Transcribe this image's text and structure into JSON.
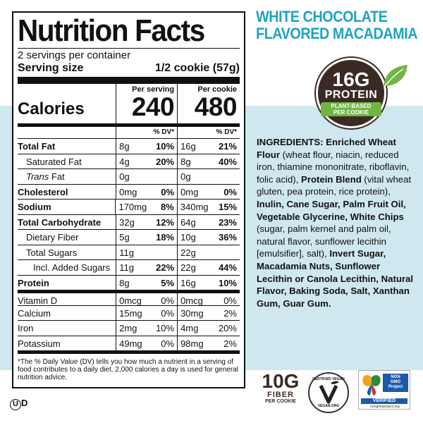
{
  "colors": {
    "accent_blue": "#1fa3c2",
    "brown": "#3b2a24",
    "green": "#6fb544",
    "bg_light_blue": "#cfe8ef"
  },
  "nutrition": {
    "title": "Nutrition Facts",
    "servings": "2 servings per container",
    "serving_size_label": "Serving size",
    "serving_size_value": "1/2 cookie (57g)",
    "calories_label": "Calories",
    "per_serving_label": "Per serving",
    "per_cookie_label": "Per cookie",
    "calories_serving": "240",
    "calories_cookie": "480",
    "dv_header": "% DV*",
    "rows": [
      {
        "name": "Total Fat",
        "amt": "8g",
        "dv": "10%",
        "amt2": "16g",
        "dv2": "21%"
      },
      {
        "name": "Saturated Fat",
        "amt": "4g",
        "dv": "20%",
        "amt2": "8g",
        "dv2": "40%"
      },
      {
        "name": "Trans",
        "name_suffix": " Fat",
        "amt": "0g",
        "dv": "",
        "amt2": "0g",
        "dv2": ""
      },
      {
        "name": "Cholesterol",
        "amt": "0mg",
        "dv": "0%",
        "amt2": "0mg",
        "dv2": "0%"
      },
      {
        "name": "Sodium",
        "amt": "170mg",
        "dv": "8%",
        "amt2": "340mg",
        "dv2": "15%"
      },
      {
        "name": "Total Carbohydrate",
        "amt": "32g",
        "dv": "12%",
        "amt2": "64g",
        "dv2": "23%"
      },
      {
        "name": "Dietary Fiber",
        "amt": "5g",
        "dv": "18%",
        "amt2": "10g",
        "dv2": "36%"
      },
      {
        "name": "Total Sugars",
        "amt": "11g",
        "dv": "",
        "amt2": "22g",
        "dv2": ""
      },
      {
        "name": "Incl. Added Sugars",
        "amt": "11g",
        "dv": "22%",
        "amt2": "22g",
        "dv2": "44%"
      },
      {
        "name": "Protein",
        "amt": "8g",
        "dv": "5%",
        "amt2": "16g",
        "dv2": "10%"
      },
      {
        "name": "Vitamin D",
        "amt": "0mcg",
        "dv": "0%",
        "amt2": "0mcg",
        "dv2": "0%"
      },
      {
        "name": "Calcium",
        "amt": "15mg",
        "dv": "0%",
        "amt2": "30mg",
        "dv2": "2%"
      },
      {
        "name": "Iron",
        "amt": "2mg",
        "dv": "10%",
        "amt2": "4mg",
        "dv2": "20%"
      },
      {
        "name": "Potassium",
        "amt": "49mg",
        "dv": "0%",
        "amt2": "98mg",
        "dv2": "2%"
      }
    ],
    "footnote": "*The % Daily Value (DV) tells you how much a nutrient in a serving of food contributes to a daily diet. 2,000 calories a day is used for general nutrition advice."
  },
  "product": {
    "title_line1": "WHITE CHOCOLATE",
    "title_line2": "FLAVORED MACADAMIA"
  },
  "protein_badge": {
    "amount": "16G",
    "label": "PROTEIN",
    "sub1": "PLANT-BASED",
    "sub2": "PER COOKIE"
  },
  "ingredients": {
    "parts": [
      {
        "t": "INGREDIENTS: Enriched Wheat Flour",
        "b": true
      },
      {
        "t": " (wheat flour, niacin, reduced iron, thiamine mononitrate, riboflavin, folic acid), ",
        "b": false
      },
      {
        "t": "Protein Blend",
        "b": true
      },
      {
        "t": " (vital wheat gluten, pea protein, rice protein), ",
        "b": false
      },
      {
        "t": "Inulin, Cane Sugar, Palm Fruit Oil, Vegetable Glycerine, White Chips",
        "b": true
      },
      {
        "t": " (sugar, palm kernel and palm oil, natural flavor, sunflower lecithin [emulsifier], salt), ",
        "b": false
      },
      {
        "t": "Invert Sugar, Macadamia Nuts, Sunflower Lecithin or Canola Lecithin, Natural Flavor, Baking Soda, Salt, Xanthan Gum, Guar Gum.",
        "b": true
      }
    ]
  },
  "fiber_badge": {
    "amount": "10G",
    "label": "FIBER",
    "sub": "PER COOKIE"
  },
  "vegan_badge": {
    "top": "CERTIFIED VEGAN",
    "bottom": "VEGAN.ORG"
  },
  "nongmo_badge": {
    "line1": "NON",
    "line2": "GMO",
    "line3": "Project",
    "verified": "VERIFIED",
    "url": "nongmoproject.org"
  },
  "kosher": {
    "symbol": "U",
    "suffix": "D"
  }
}
